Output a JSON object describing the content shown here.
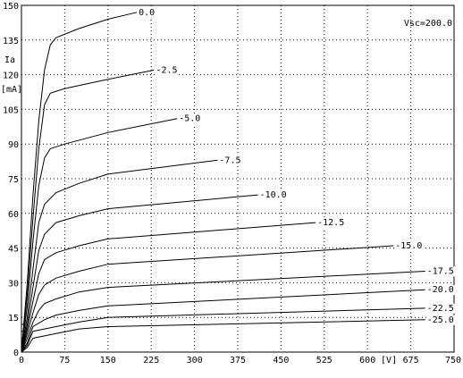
{
  "chart_data": {
    "type": "line",
    "xlabel": "[V]",
    "ylabel": "Ia",
    "ylabel_unit": "[mA]",
    "annotation": "Vsc=200.0",
    "xlim": [
      0,
      750
    ],
    "ylim": [
      0,
      150
    ],
    "x_ticks": [
      0,
      75,
      150,
      225,
      300,
      375,
      450,
      525,
      600,
      675,
      750
    ],
    "x_tick_labels": [
      "0",
      "75",
      "150",
      "225",
      "300",
      "375",
      "450",
      "525",
      "600",
      "675",
      "750"
    ],
    "y_ticks": [
      0,
      15,
      30,
      45,
      60,
      75,
      90,
      105,
      120,
      135,
      150
    ],
    "y_tick_labels": [
      "0",
      "15",
      "30",
      "45",
      "60",
      "75",
      "90",
      "105",
      "120",
      "135",
      "150"
    ],
    "grid": true,
    "series": [
      {
        "name": "0.0",
        "x": [
          0,
          10,
          20,
          30,
          40,
          50,
          60,
          100,
          150,
          200
        ],
        "y": [
          0,
          30,
          68,
          100,
          122,
          133,
          136,
          140,
          144,
          147
        ]
      },
      {
        "name": "-2.5",
        "x": [
          0,
          10,
          20,
          30,
          40,
          50,
          75,
          150,
          230
        ],
        "y": [
          0,
          25,
          58,
          88,
          107,
          112,
          114,
          118,
          122
        ]
      },
      {
        "name": "-5.0",
        "x": [
          0,
          10,
          20,
          30,
          40,
          50,
          75,
          150,
          270
        ],
        "y": [
          0,
          20,
          48,
          72,
          84,
          88,
          90,
          95,
          101
        ]
      },
      {
        "name": "-7.5",
        "x": [
          0,
          10,
          20,
          30,
          40,
          60,
          100,
          150,
          340
        ],
        "y": [
          0,
          15,
          36,
          56,
          64,
          69,
          73,
          77,
          83
        ]
      },
      {
        "name": "-10.0",
        "x": [
          0,
          10,
          20,
          30,
          40,
          60,
          100,
          150,
          410
        ],
        "y": [
          0,
          12,
          28,
          44,
          51,
          56,
          59,
          62,
          68
        ]
      },
      {
        "name": "-12.5",
        "x": [
          0,
          10,
          20,
          30,
          40,
          60,
          100,
          150,
          510
        ],
        "y": [
          0,
          10,
          22,
          34,
          40,
          43,
          46,
          49,
          56
        ]
      },
      {
        "name": "-15.0",
        "x": [
          0,
          10,
          20,
          30,
          40,
          60,
          100,
          150,
          645
        ],
        "y": [
          0,
          8,
          17,
          25,
          29,
          32,
          35,
          38,
          46
        ]
      },
      {
        "name": "-17.5",
        "x": [
          0,
          10,
          20,
          30,
          40,
          60,
          100,
          150,
          700
        ],
        "y": [
          0,
          6,
          13,
          18,
          21,
          23,
          26,
          28,
          35
        ]
      },
      {
        "name": "-20.0",
        "x": [
          0,
          10,
          20,
          40,
          60,
          100,
          150,
          700
        ],
        "y": [
          0,
          4,
          11,
          14,
          16,
          18,
          20,
          27
        ]
      },
      {
        "name": "-22.5",
        "x": [
          0,
          10,
          20,
          40,
          60,
          100,
          150,
          700
        ],
        "y": [
          0,
          3,
          9,
          10,
          11,
          13,
          15,
          19
        ]
      },
      {
        "name": "-25.0",
        "x": [
          0,
          10,
          20,
          40,
          60,
          100,
          150,
          700
        ],
        "y": [
          0,
          2,
          6,
          7,
          8,
          10,
          11,
          14
        ]
      }
    ]
  }
}
